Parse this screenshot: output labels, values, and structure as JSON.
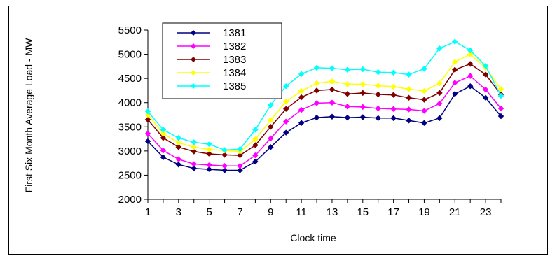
{
  "chart_data": {
    "type": "line",
    "title": "",
    "xlabel": "Clock time",
    "ylabel": "First Six Month Average Load - MW",
    "x": [
      1,
      2,
      3,
      4,
      5,
      6,
      7,
      8,
      9,
      10,
      11,
      12,
      13,
      14,
      15,
      16,
      17,
      18,
      19,
      20,
      21,
      22,
      23,
      24
    ],
    "x_tick_labels": [
      "1",
      "3",
      "5",
      "7",
      "9",
      "11",
      "13",
      "15",
      "17",
      "19",
      "21",
      "23"
    ],
    "ylim": [
      2000,
      5500
    ],
    "y_ticks": [
      2000,
      2500,
      3000,
      3500,
      4000,
      4500,
      5000,
      5500
    ],
    "grid": false,
    "legend_position": "top-left",
    "series": [
      {
        "name": "1381",
        "color": "#000080",
        "values": [
          3200,
          2870,
          2720,
          2640,
          2620,
          2600,
          2600,
          2780,
          3080,
          3380,
          3580,
          3690,
          3710,
          3690,
          3700,
          3680,
          3680,
          3630,
          3580,
          3680,
          4180,
          4340,
          4100,
          3720
        ]
      },
      {
        "name": "1382",
        "color": "#FF00FF",
        "values": [
          3360,
          3010,
          2830,
          2730,
          2710,
          2690,
          2690,
          2910,
          3260,
          3610,
          3850,
          3990,
          4000,
          3920,
          3910,
          3880,
          3870,
          3860,
          3830,
          3980,
          4410,
          4550,
          4270,
          3880
        ]
      },
      {
        "name": "1383",
        "color": "#800000",
        "values": [
          3650,
          3270,
          3080,
          2990,
          2940,
          2920,
          2910,
          3120,
          3500,
          3870,
          4110,
          4250,
          4270,
          4180,
          4200,
          4170,
          4160,
          4100,
          4060,
          4200,
          4680,
          4800,
          4580,
          4170
        ]
      },
      {
        "name": "1384",
        "color": "#FFFF00",
        "values": [
          3750,
          3360,
          3170,
          3080,
          3030,
          3010,
          2990,
          3240,
          3640,
          4020,
          4240,
          4400,
          4440,
          4380,
          4380,
          4350,
          4330,
          4280,
          4240,
          4400,
          4840,
          5000,
          4720,
          4280
        ]
      },
      {
        "name": "1385",
        "color": "#00FFFF",
        "values": [
          3820,
          3440,
          3270,
          3180,
          3140,
          3020,
          3040,
          3440,
          3950,
          4340,
          4590,
          4720,
          4710,
          4680,
          4690,
          4630,
          4620,
          4580,
          4700,
          5120,
          5260,
          5080,
          4760,
          4140
        ]
      }
    ]
  }
}
